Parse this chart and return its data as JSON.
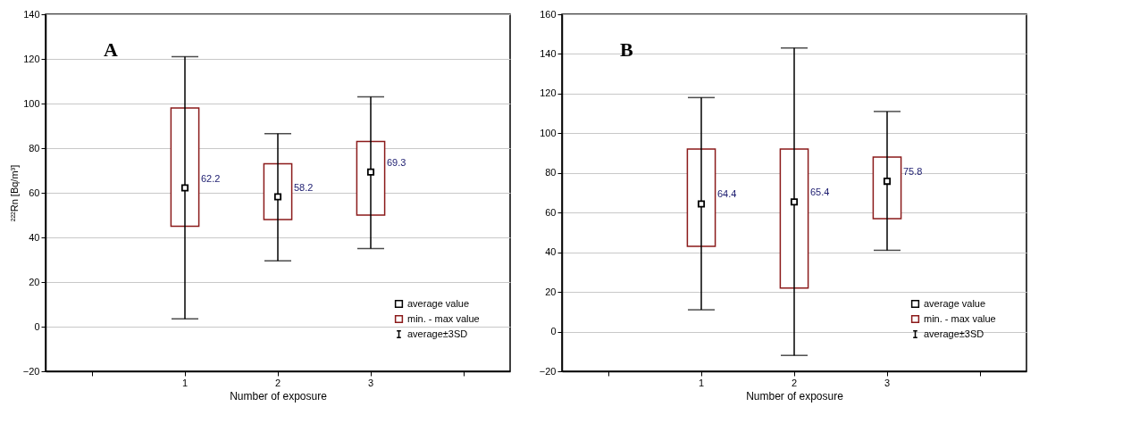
{
  "chart_data": [
    {
      "type": "box",
      "title": "A",
      "xlabel": "Number of exposure",
      "ylabel": "²²²Rn [Bq/m³]",
      "categories": [
        null,
        "1",
        "2",
        "3",
        null
      ],
      "ylim": [
        -20,
        140
      ],
      "yticks": [
        -20,
        0,
        20,
        40,
        60,
        80,
        100,
        120,
        140
      ],
      "grid": "y",
      "legend": "bottom right",
      "series": [
        {
          "name": "average value",
          "type": "scatter",
          "marker": "square",
          "color": "#000000",
          "values": [
            null,
            62.2,
            58.2,
            69.3,
            null
          ],
          "value_labels": [
            null,
            "62.2",
            "58.2",
            "69.3",
            null
          ],
          "errors": [
            null,
            [
              3.5,
              121
            ],
            [
              29.5,
              86.5
            ],
            [
              35,
              103
            ],
            null
          ]
        },
        {
          "name": "min. - max value",
          "type": "bar",
          "color": "#8b1a1a",
          "base": [
            null,
            45,
            48,
            50,
            null
          ],
          "values": [
            null,
            53,
            25,
            33,
            null
          ]
        }
      ],
      "annotations": [
        "average±3SD"
      ]
    },
    {
      "type": "box",
      "title": "B",
      "xlabel": "Number of exposure",
      "categories": [
        null,
        "1",
        "2",
        "3",
        null
      ],
      "ylim": [
        -20,
        160
      ],
      "yticks": [
        -20,
        0,
        20,
        40,
        60,
        80,
        100,
        120,
        140,
        160
      ],
      "grid": "y",
      "legend": "bottom right",
      "series": [
        {
          "name": "average value",
          "type": "scatter",
          "marker": "square",
          "color": "#000000",
          "values": [
            null,
            64.4,
            65.4,
            75.8,
            null
          ],
          "value_labels": [
            null,
            "64.4",
            "65.4",
            "75.8",
            null
          ],
          "errors": [
            null,
            [
              11,
              118
            ],
            [
              -12,
              143
            ],
            [
              41,
              111
            ],
            null
          ]
        },
        {
          "name": "min. - max value",
          "type": "bar",
          "color": "#8b1a1a",
          "base": [
            null,
            43,
            22,
            57,
            null
          ],
          "values": [
            null,
            49,
            70,
            31,
            null
          ]
        }
      ],
      "annotations": [
        "average±3SD"
      ]
    }
  ]
}
